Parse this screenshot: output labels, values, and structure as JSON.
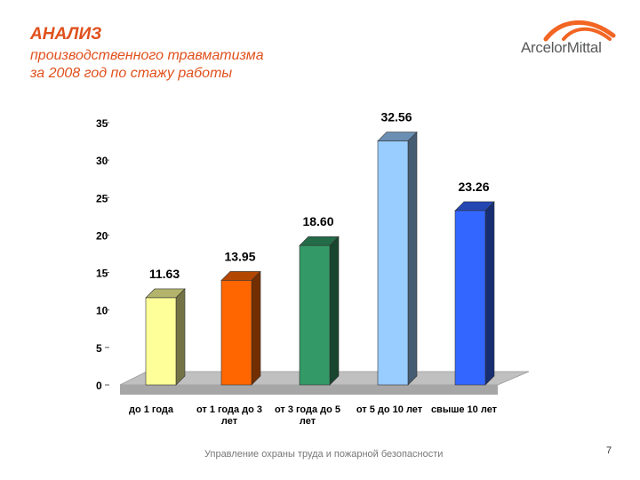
{
  "header": {
    "title": "АНАЛИЗ",
    "subtitle_line1": "производственного травматизма",
    "subtitle_line2": "за 2008 год по стажу работы",
    "logo_text": "ArcelorMittal"
  },
  "footer": {
    "text": "Управление охраны труда и пожарной безопасности",
    "page_number": "7"
  },
  "chart_data": {
    "type": "bar",
    "categories": [
      [
        "до 1 года"
      ],
      [
        "от 1 года до 3",
        "лет"
      ],
      [
        "от 3 года до 5",
        "лет"
      ],
      [
        "от 5 до 10 лет"
      ],
      [
        "свыше 10 лет"
      ]
    ],
    "values": [
      11.63,
      13.95,
      18.6,
      32.56,
      23.26
    ],
    "value_labels": [
      "11.63",
      "13.95",
      "18.60",
      "32.56",
      "23.26"
    ],
    "yticks": [
      "0",
      "5",
      "10",
      "15",
      "20",
      "25",
      "30",
      "35"
    ],
    "ylim": [
      0,
      35
    ],
    "colors": [
      "#ffff99",
      "#ff6600",
      "#339966",
      "#99ccff",
      "#3366ff"
    ],
    "title": "",
    "xlabel": "",
    "ylabel": ""
  }
}
